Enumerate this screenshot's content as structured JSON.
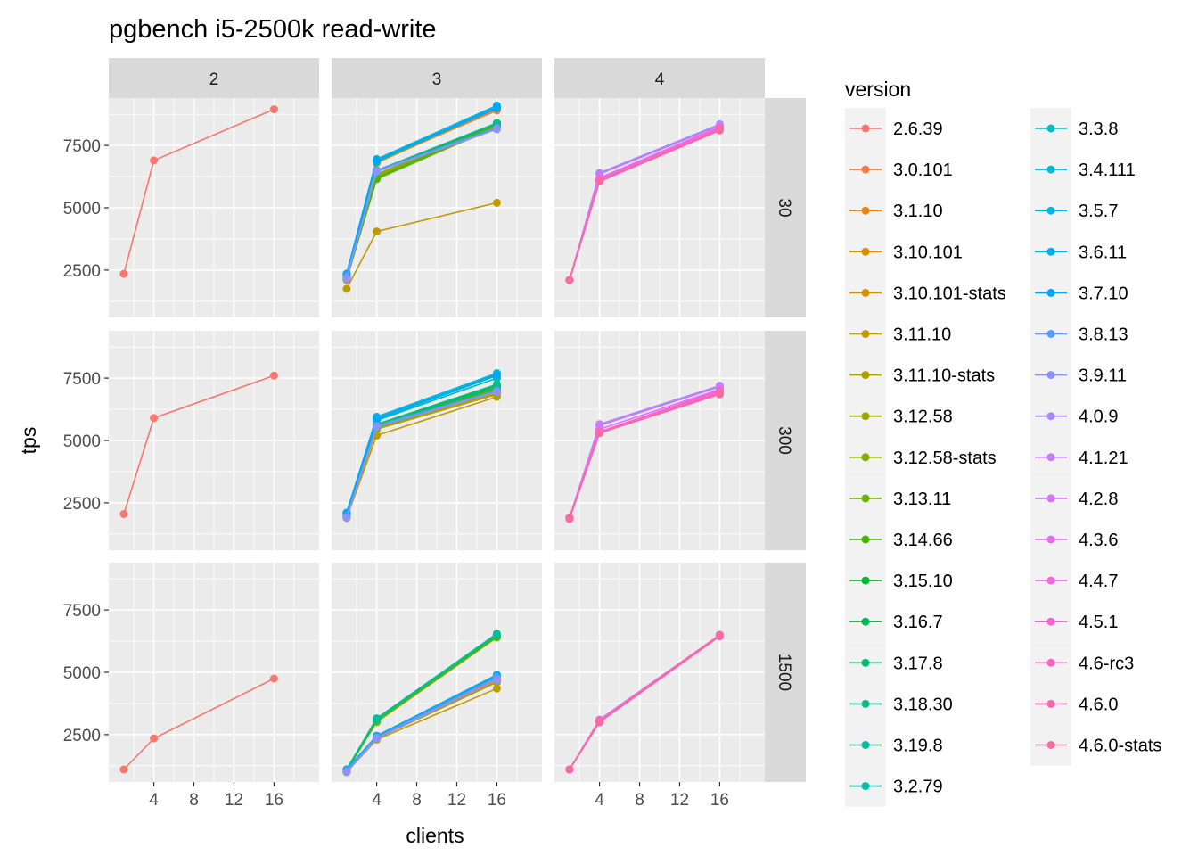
{
  "chart_data": {
    "type": "line",
    "title": "pgbench i5-2500k read-write",
    "xlabel": "clients",
    "ylabel": "tps",
    "x": [
      1,
      4,
      16
    ],
    "xticks": [
      4,
      8,
      12,
      16
    ],
    "xlim": [
      -0.5,
      20.5
    ],
    "yticks": [
      2500,
      5000,
      7500
    ],
    "ylim": [
      600,
      9400
    ],
    "grid": true,
    "legend": {
      "title": "version",
      "placement": "right",
      "entries": [
        "2.6.39",
        "3.0.101",
        "3.1.10",
        "3.10.101",
        "3.10.101-stats",
        "3.11.10",
        "3.11.10-stats",
        "3.12.58",
        "3.12.58-stats",
        "3.13.11",
        "3.14.66",
        "3.15.10",
        "3.16.7",
        "3.17.8",
        "3.18.30",
        "3.19.8",
        "3.2.79",
        "3.3.8",
        "3.4.111",
        "3.5.7",
        "3.6.11",
        "3.7.10",
        "3.8.13",
        "3.9.11",
        "4.0.9",
        "4.1.21",
        "4.2.8",
        "4.3.6",
        "4.4.7",
        "4.5.1",
        "4.6-rc3",
        "4.6.0",
        "4.6.0-stats"
      ],
      "colors": [
        "#F8766D",
        "#F07E4C",
        "#E7861B",
        "#DB8E00",
        "#CF9400",
        "#C09B00",
        "#AFA100",
        "#9CA700",
        "#85AD00",
        "#6BB100",
        "#46B500",
        "#00B931",
        "#00BB54",
        "#00BD6F",
        "#00BF86",
        "#00C09C",
        "#00C0B0",
        "#00BFC3",
        "#00BBD5",
        "#00B6E5",
        "#00AFF3",
        "#00A5FF",
        "#569BFF",
        "#8C92FF",
        "#AB87FF",
        "#C57DFF",
        "#DA73FB",
        "#E86BF3",
        "#F565E3",
        "#FB61D5",
        "#FF61C3",
        "#FF64B0",
        "#FC6B9E"
      ]
    },
    "facets": {
      "columns": [
        "2",
        "3",
        "4"
      ],
      "rows": [
        "30",
        "300",
        "1500"
      ]
    },
    "panels": [
      {
        "col": "2",
        "row": "30",
        "series": [
          {
            "name": "2.6.39",
            "values": [
              2350,
              6900,
              8950
            ]
          }
        ]
      },
      {
        "col": "2",
        "row": "300",
        "series": [
          {
            "name": "2.6.39",
            "values": [
              2050,
              5900,
              7600
            ]
          }
        ]
      },
      {
        "col": "2",
        "row": "1500",
        "series": [
          {
            "name": "2.6.39",
            "values": [
              1100,
              2350,
              4750
            ]
          }
        ]
      },
      {
        "col": "3",
        "row": "30",
        "series": [
          {
            "name": "3.0.101",
            "values": [
              2250,
              6850,
              8900
            ]
          },
          {
            "name": "3.1.10",
            "values": [
              2250,
              6800,
              8950
            ]
          },
          {
            "name": "3.10.101",
            "values": [
              2200,
              6500,
              8300
            ]
          },
          {
            "name": "3.10.101-stats",
            "values": [
              2150,
              6450,
              8250
            ]
          },
          {
            "name": "3.11.10",
            "values": [
              1750,
              4050,
              5200
            ]
          },
          {
            "name": "3.11.10-stats",
            "values": [
              2100,
              6250,
              8200
            ]
          },
          {
            "name": "3.12.58",
            "values": [
              2150,
              6300,
              8250
            ]
          },
          {
            "name": "3.12.58-stats",
            "values": [
              2200,
              6350,
              8300
            ]
          },
          {
            "name": "3.13.11",
            "values": [
              2150,
              6150,
              8250
            ]
          },
          {
            "name": "3.14.66",
            "values": [
              2200,
              6200,
              8350
            ]
          },
          {
            "name": "3.15.10",
            "values": [
              2250,
              6450,
              8400
            ]
          },
          {
            "name": "3.16.7",
            "values": [
              2250,
              6450,
              8400
            ]
          },
          {
            "name": "3.17.8",
            "values": [
              2250,
              6450,
              8350
            ]
          },
          {
            "name": "3.18.30",
            "values": [
              2250,
              6500,
              8400
            ]
          },
          {
            "name": "3.19.8",
            "values": [
              2300,
              6850,
              9000
            ]
          },
          {
            "name": "3.2.79",
            "values": [
              2350,
              6950,
              9100
            ]
          },
          {
            "name": "3.3.8",
            "values": [
              2350,
              6900,
              9050
            ]
          },
          {
            "name": "3.4.111",
            "values": [
              2350,
              6900,
              9050
            ]
          },
          {
            "name": "3.5.7",
            "values": [
              2350,
              6950,
              9100
            ]
          },
          {
            "name": "3.6.11",
            "values": [
              2350,
              6900,
              9050
            ]
          },
          {
            "name": "3.7.10",
            "values": [
              2300,
              6900,
              9000
            ]
          },
          {
            "name": "3.8.13",
            "values": [
              2250,
              6500,
              8200
            ]
          },
          {
            "name": "3.9.11",
            "values": [
              2150,
              6450,
              8150
            ]
          }
        ]
      },
      {
        "col": "3",
        "row": "300",
        "series": [
          {
            "name": "3.0.101",
            "values": [
              1950,
              5600,
              7000
            ]
          },
          {
            "name": "3.1.10",
            "values": [
              1950,
              5600,
              7050
            ]
          },
          {
            "name": "3.10.101",
            "values": [
              1900,
              5550,
              6950
            ]
          },
          {
            "name": "3.10.101-stats",
            "values": [
              1900,
              5500,
              6900
            ]
          },
          {
            "name": "3.11.10",
            "values": [
              1900,
              5200,
              6750
            ]
          },
          {
            "name": "3.11.10-stats",
            "values": [
              1900,
              5450,
              6850
            ]
          },
          {
            "name": "3.12.58",
            "values": [
              1900,
              5500,
              6950
            ]
          },
          {
            "name": "3.12.58-stats",
            "values": [
              1950,
              5500,
              7000
            ]
          },
          {
            "name": "3.13.11",
            "values": [
              1950,
              5550,
              7050
            ]
          },
          {
            "name": "3.14.66",
            "values": [
              1950,
              5550,
              7100
            ]
          },
          {
            "name": "3.15.10",
            "values": [
              2000,
              5600,
              7200
            ]
          },
          {
            "name": "3.16.7",
            "values": [
              2000,
              5600,
              7200
            ]
          },
          {
            "name": "3.17.8",
            "values": [
              2000,
              5600,
              7150
            ]
          },
          {
            "name": "3.18.30",
            "values": [
              2000,
              5650,
              7250
            ]
          },
          {
            "name": "3.19.8",
            "values": [
              2050,
              5800,
              7500
            ]
          },
          {
            "name": "3.2.79",
            "values": [
              2100,
              5900,
              7650
            ]
          },
          {
            "name": "3.3.8",
            "values": [
              2100,
              5900,
              7600
            ]
          },
          {
            "name": "3.4.111",
            "values": [
              2100,
              5950,
              7700
            ]
          },
          {
            "name": "3.5.7",
            "values": [
              2100,
              5900,
              7650
            ]
          },
          {
            "name": "3.6.11",
            "values": [
              2100,
              5900,
              7650
            ]
          },
          {
            "name": "3.7.10",
            "values": [
              2050,
              5850,
              7600
            ]
          },
          {
            "name": "3.8.13",
            "values": [
              1950,
              5600,
              7000
            ]
          },
          {
            "name": "3.9.11",
            "values": [
              1900,
              5550,
              6950
            ]
          }
        ]
      },
      {
        "col": "3",
        "row": "1500",
        "series": [
          {
            "name": "3.0.101",
            "values": [
              1050,
              2400,
              4750
            ]
          },
          {
            "name": "3.1.10",
            "values": [
              1050,
              2400,
              4750
            ]
          },
          {
            "name": "3.10.101",
            "values": [
              1000,
              2350,
              4700
            ]
          },
          {
            "name": "3.10.101-stats",
            "values": [
              1000,
              2350,
              4650
            ]
          },
          {
            "name": "3.11.10",
            "values": [
              1000,
              2300,
              4350
            ]
          },
          {
            "name": "3.11.10-stats",
            "values": [
              1000,
              2350,
              4600
            ]
          },
          {
            "name": "3.12.58",
            "values": [
              1050,
              3000,
              6400
            ]
          },
          {
            "name": "3.12.58-stats",
            "values": [
              1050,
              3050,
              6400
            ]
          },
          {
            "name": "3.13.11",
            "values": [
              1050,
              3050,
              6450
            ]
          },
          {
            "name": "3.14.66",
            "values": [
              1100,
              3100,
              6450
            ]
          },
          {
            "name": "3.15.10",
            "values": [
              1100,
              3100,
              6500
            ]
          },
          {
            "name": "3.16.7",
            "values": [
              1100,
              3100,
              6500
            ]
          },
          {
            "name": "3.17.8",
            "values": [
              1100,
              3150,
              6500
            ]
          },
          {
            "name": "3.18.30",
            "values": [
              1100,
              3150,
              6550
            ]
          },
          {
            "name": "3.19.8",
            "values": [
              1100,
              3100,
              6500
            ]
          },
          {
            "name": "3.2.79",
            "values": [
              1100,
              2450,
              4850
            ]
          },
          {
            "name": "3.3.8",
            "values": [
              1100,
              2450,
              4850
            ]
          },
          {
            "name": "3.4.111",
            "values": [
              1100,
              2450,
              4900
            ]
          },
          {
            "name": "3.5.7",
            "values": [
              1100,
              2450,
              4850
            ]
          },
          {
            "name": "3.6.11",
            "values": [
              1100,
              2450,
              4900
            ]
          },
          {
            "name": "3.7.10",
            "values": [
              1050,
              2400,
              4850
            ]
          },
          {
            "name": "3.8.13",
            "values": [
              1050,
              2400,
              4800
            ]
          },
          {
            "name": "3.9.11",
            "values": [
              1000,
              2350,
              4700
            ]
          }
        ]
      },
      {
        "col": "4",
        "row": "30",
        "series": [
          {
            "name": "4.0.9",
            "values": [
              2100,
              6400,
              8350
            ]
          },
          {
            "name": "4.1.21",
            "values": [
              2100,
              6350,
              8300
            ]
          },
          {
            "name": "4.2.8",
            "values": [
              2100,
              6200,
              8250
            ]
          },
          {
            "name": "4.3.6",
            "values": [
              2100,
              6150,
              8200
            ]
          },
          {
            "name": "4.4.7",
            "values": [
              2100,
              6100,
              8150
            ]
          },
          {
            "name": "4.5.1",
            "values": [
              2100,
              6100,
              8200
            ]
          },
          {
            "name": "4.6-rc3",
            "values": [
              2100,
              6100,
              8150
            ]
          },
          {
            "name": "4.6.0",
            "values": [
              2100,
              6050,
              8100
            ]
          },
          {
            "name": "4.6.0-stats",
            "values": [
              2100,
              6100,
              8150
            ]
          }
        ]
      },
      {
        "col": "4",
        "row": "300",
        "series": [
          {
            "name": "4.0.9",
            "values": [
              1900,
              5650,
              7200
            ]
          },
          {
            "name": "4.1.21",
            "values": [
              1900,
              5600,
              7150
            ]
          },
          {
            "name": "4.2.8",
            "values": [
              1900,
              5450,
              7050
            ]
          },
          {
            "name": "4.3.6",
            "values": [
              1900,
              5350,
              7000
            ]
          },
          {
            "name": "4.4.7",
            "values": [
              1900,
              5300,
              6950
            ]
          },
          {
            "name": "4.5.1",
            "values": [
              1900,
              5350,
              7000
            ]
          },
          {
            "name": "4.6-rc3",
            "values": [
              1900,
              5300,
              6900
            ]
          },
          {
            "name": "4.6.0",
            "values": [
              1850,
              5300,
              6850
            ]
          },
          {
            "name": "4.6.0-stats",
            "values": [
              1900,
              5300,
              6900
            ]
          }
        ]
      },
      {
        "col": "4",
        "row": "1500",
        "series": [
          {
            "name": "4.0.9",
            "values": [
              1100,
              3100,
              6500
            ]
          },
          {
            "name": "4.1.21",
            "values": [
              1100,
              3100,
              6500
            ]
          },
          {
            "name": "4.2.8",
            "values": [
              1100,
              3050,
              6500
            ]
          },
          {
            "name": "4.3.6",
            "values": [
              1100,
              3050,
              6450
            ]
          },
          {
            "name": "4.4.7",
            "values": [
              1100,
              3050,
              6500
            ]
          },
          {
            "name": "4.5.1",
            "values": [
              1100,
              3050,
              6500
            ]
          },
          {
            "name": "4.6-rc3",
            "values": [
              1100,
              3000,
              6450
            ]
          },
          {
            "name": "4.6.0",
            "values": [
              1100,
              3000,
              6450
            ]
          },
          {
            "name": "4.6.0-stats",
            "values": [
              1100,
              3050,
              6500
            ]
          }
        ]
      }
    ]
  }
}
